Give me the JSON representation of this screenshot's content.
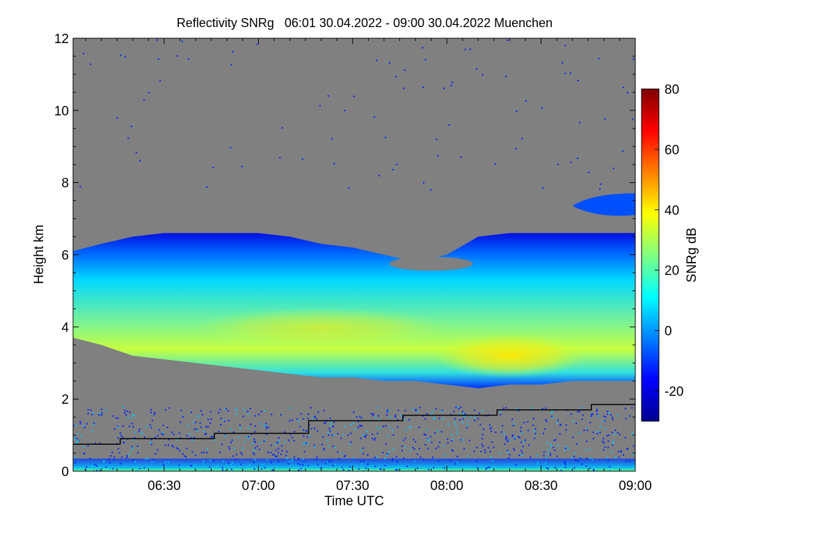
{
  "chart_data": {
    "type": "heatmap",
    "title": "Reflectivity SNRg   06:01 30.04.2022 - 09:00 30.04.2022 Muenchen",
    "xlabel": "Time UTC",
    "ylabel": "Height km",
    "x_range_minutes_utc": [
      361,
      540
    ],
    "x_ticks": [
      {
        "label": "06:30",
        "minutes": 390
      },
      {
        "label": "07:00",
        "minutes": 420
      },
      {
        "label": "07:30",
        "minutes": 450
      },
      {
        "label": "08:00",
        "minutes": 480
      },
      {
        "label": "08:30",
        "minutes": 510
      },
      {
        "label": "09:00",
        "minutes": 540
      }
    ],
    "ylim": [
      0,
      12
    ],
    "y_ticks": [
      0,
      2,
      4,
      6,
      8,
      10,
      12
    ],
    "background_color": "#808080",
    "colorbar": {
      "label": "SNRg dB",
      "range": [
        -30,
        80
      ],
      "ticks": [
        -20,
        0,
        20,
        40,
        60,
        80
      ],
      "colors": [
        "#00008f",
        "#0000ff",
        "#0080ff",
        "#00ffff",
        "#80ff80",
        "#ffff00",
        "#ff8000",
        "#ff0000",
        "#800000"
      ]
    },
    "cloud_layer": {
      "time_minutes": [
        361,
        370,
        380,
        390,
        400,
        410,
        420,
        430,
        440,
        450,
        460,
        470,
        480,
        490,
        500,
        510,
        520,
        530,
        540
      ],
      "top_km": [
        6.1,
        6.3,
        6.5,
        6.6,
        6.6,
        6.6,
        6.6,
        6.5,
        6.3,
        6.2,
        6.0,
        5.8,
        6.0,
        6.5,
        6.6,
        6.6,
        6.6,
        6.6,
        6.6
      ],
      "base_km": [
        3.7,
        3.5,
        3.2,
        3.1,
        3.0,
        2.9,
        2.8,
        2.7,
        2.6,
        2.6,
        2.5,
        2.5,
        2.4,
        2.3,
        2.4,
        2.4,
        2.5,
        2.5,
        2.5
      ],
      "core_snr_db": 35
    },
    "upper_cloud_patch": {
      "time_minutes": [
        520,
        540
      ],
      "top_km": 7.7,
      "base_km": 7.1
    },
    "boundary_layer_line": {
      "time_minutes": [
        361,
        376,
        376,
        406,
        406,
        436,
        436,
        466,
        466,
        496,
        496,
        526,
        526,
        540
      ],
      "height_km": [
        0.75,
        0.75,
        0.9,
        0.9,
        1.05,
        1.05,
        1.4,
        1.4,
        1.55,
        1.55,
        1.7,
        1.7,
        1.85,
        1.85
      ],
      "color": "#000000"
    }
  }
}
